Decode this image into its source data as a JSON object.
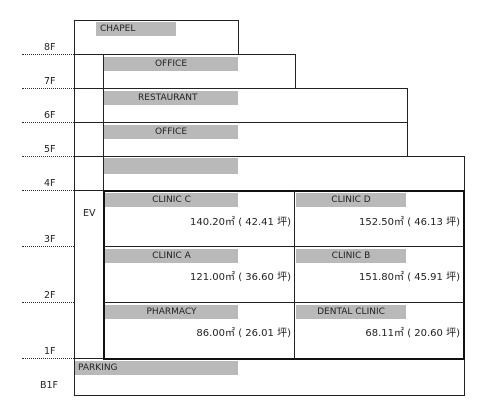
{
  "floors": {
    "f8": "8F",
    "f7": "7F",
    "f6": "6F",
    "f5": "5F",
    "f4": "4F",
    "f3": "3F",
    "f2": "2F",
    "f1": "1F",
    "b1": "B1F"
  },
  "elevator_label": "EV",
  "upper": {
    "chapel": "CHAPEL",
    "office7": "OFFICE",
    "restaurant": "RESTAURANT",
    "office5": "OFFICE",
    "unlabeled4": ""
  },
  "units": {
    "clinic_c": {
      "name": "CLINIC  C",
      "area": "140.20㎡ ( 42.41 坪)"
    },
    "clinic_d": {
      "name": "CLINIC  D",
      "area": "152.50㎡ ( 46.13 坪)"
    },
    "clinic_a": {
      "name": "CLINIC  A",
      "area": "121.00㎡ ( 36.60 坪)"
    },
    "clinic_b": {
      "name": "CLINIC  B",
      "area": "151.80㎡ ( 45.91 坪)"
    },
    "pharmacy": {
      "name": "PHARMACY",
      "area": "86.00㎡ ( 26.01 坪)"
    },
    "dental": {
      "name": "DENTAL CLINIC",
      "area": "68.11㎡ ( 20.60 坪)"
    }
  },
  "parking": "PARKING",
  "colors": {
    "label_bg": "#b9b9b9",
    "line": "#222222"
  }
}
